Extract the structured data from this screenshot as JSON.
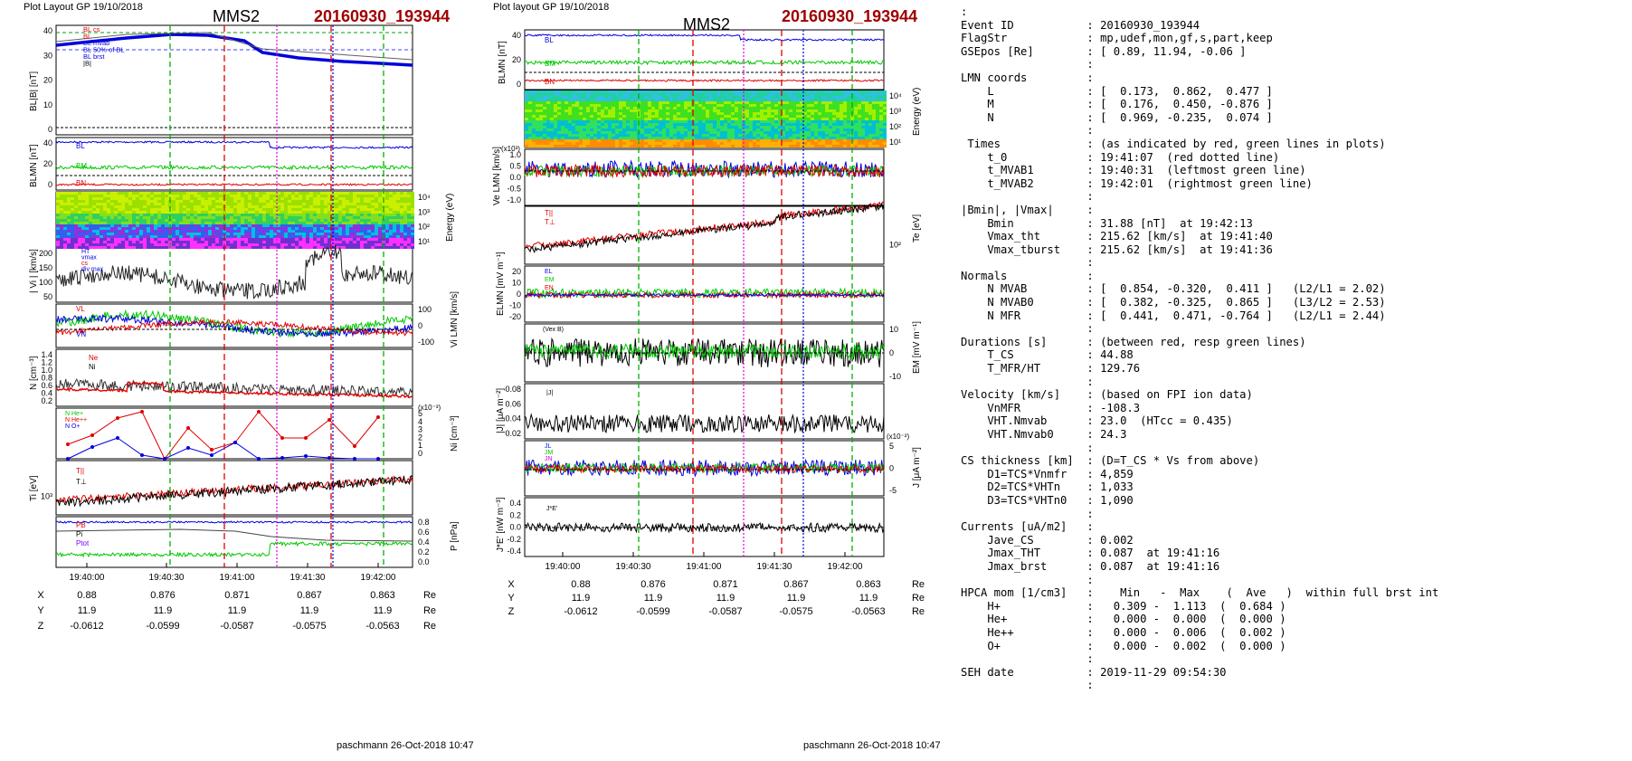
{
  "left": {
    "layout_label": "Plot Layout GP 19/10/2018",
    "sc_title": "MMS2",
    "event_title": "20160930_193944",
    "footer": "paschmann 26-Oct-2018 10:47",
    "time_ticks": [
      "19:40:00",
      "19:40:30",
      "19:41:00",
      "19:41:30",
      "19:42:00"
    ],
    "coords": {
      "rows": [
        {
          "label": "X",
          "values": [
            "0.88",
            "0.876",
            "0.871",
            "0.867",
            "0.863"
          ],
          "unit": "Re"
        },
        {
          "label": "Y",
          "values": [
            "11.9",
            "11.9",
            "11.9",
            "11.9",
            "11.9"
          ],
          "unit": "Re"
        },
        {
          "label": "Z",
          "values": [
            "-0.0612",
            "-0.0599",
            "-0.0587",
            "-0.0575",
            "-0.0563"
          ],
          "unit": "Re"
        }
      ]
    },
    "panel1": {
      "ylabel": "BL|B| [nT]",
      "ticks": [
        "40",
        "30",
        "20",
        "10",
        "0"
      ],
      "legend": [
        "BL cs",
        "BL",
        "BL mvab",
        "BL 50% of BL",
        "BL brst",
        "|B|"
      ]
    },
    "panel2": {
      "ylabel": "BLMN [nT]",
      "ticks": [
        "40",
        "20",
        "0"
      ],
      "labels": [
        "BL",
        "BM",
        "BN"
      ]
    },
    "panel3": {
      "ylabel": "Energy (eV)",
      "ticks": [
        "10⁴",
        "10³",
        "10²",
        "10¹"
      ]
    },
    "panel4": {
      "ylabel": "| Vi | [km/s]",
      "ticks": [
        "200",
        "150",
        "100",
        "50"
      ],
      "legend": [
        "HT",
        "vmax",
        "cs",
        "div max"
      ]
    },
    "panel5": {
      "ylabel": "Vi LMN [km/s]",
      "ticks": [
        "100",
        "0",
        "-100"
      ],
      "labels": [
        "VL",
        "VM",
        "VN"
      ]
    },
    "panel6": {
      "ylabel": "N [cm⁻³]",
      "ticks": [
        "1.4",
        "1.2",
        "1.0",
        "0.8",
        "0.6",
        "0.4",
        "0.2"
      ],
      "legend": [
        "Ne",
        "Ni"
      ]
    },
    "panel7": {
      "ylabel": "Ni [cm⁻³]",
      "ticks": [
        "5",
        "4",
        "3",
        "2",
        "1",
        "0"
      ],
      "exp": "(x10⁻³)",
      "legend": [
        "N  He+",
        "N  He++",
        "N  O+"
      ]
    },
    "panel8": {
      "ylabel": "Ti [eV]",
      "ticks": [
        "10³"
      ],
      "labels": [
        "T||",
        "T⊥"
      ]
    },
    "panel9": {
      "ylabel": "P [nPa]",
      "ticks": [
        "0.8",
        "0.6",
        "0.4",
        "0.2",
        "0.0"
      ],
      "labels": [
        "PB",
        "Pi",
        "Ptot"
      ]
    }
  },
  "middle": {
    "layout_label": "Plot layout GP 19/10/2018",
    "sc_title": "MMS2",
    "event_title": "20160930_193944",
    "footer": "paschmann 26-Oct-2018 10:47",
    "time_ticks": [
      "19:40:00",
      "19:40:30",
      "19:41:00",
      "19:41:30",
      "19:42:00"
    ],
    "coords": {
      "rows": [
        {
          "label": "X",
          "values": [
            "0.88",
            "0.876",
            "0.871",
            "0.867",
            "0.863"
          ],
          "unit": "Re"
        },
        {
          "label": "Y",
          "values": [
            "11.9",
            "11.9",
            "11.9",
            "11.9",
            "11.9"
          ],
          "unit": "Re"
        },
        {
          "label": "Z",
          "values": [
            "-0.0612",
            "-0.0599",
            "-0.0587",
            "-0.0575",
            "-0.0563"
          ],
          "unit": "Re"
        }
      ]
    },
    "panel1": {
      "ylabel": "BLMN [nT]",
      "ticks": [
        "40",
        "20",
        "0"
      ],
      "labels": [
        "BL",
        "BM",
        "BN"
      ]
    },
    "panel2": {
      "ylabel": "Energy (eV)",
      "ticks": [
        "10⁴",
        "10³",
        "10²",
        "10¹"
      ]
    },
    "panel3": {
      "ylabel": "Ve LMN [km/s]",
      "ticks": [
        "1.0",
        "0.5",
        "0.0",
        "-0.5",
        "-1.0"
      ],
      "exp": "(x10³)"
    },
    "panel4": {
      "ylabel": "Te [eV]",
      "ticks": [
        "10²"
      ],
      "labels": [
        "T||",
        "T⊥"
      ]
    },
    "panel5": {
      "ylabel": "ELMN [mV m⁻¹]",
      "ticks": [
        "20",
        "10",
        "0",
        "-10",
        "-20"
      ],
      "labels": [
        "EL",
        "EM",
        "EN"
      ]
    },
    "panel6": {
      "ylabel": "EM [mV m⁻¹]",
      "ticks": [
        "10",
        "0",
        "-10"
      ],
      "legend": [
        "(Vex B)"
      ]
    },
    "panel7": {
      "ylabel": "|J| [μA m⁻²]",
      "ticks": [
        "0.08",
        "0.06",
        "0.04",
        "0.02"
      ],
      "legend": [
        "|J|"
      ]
    },
    "panel8": {
      "ylabel": "J [μA m⁻²]",
      "ticks": [
        "5",
        "0",
        "-5"
      ],
      "exp": "(x10⁻²)",
      "legend": [
        "JL",
        "JM",
        "JN"
      ]
    },
    "panel9": {
      "ylabel": "J*E' [nW m⁻³]",
      "ticks": [
        "0.4",
        "0.2",
        "0.0",
        "-0.2",
        "-0.4"
      ],
      "legend": [
        "J*E'"
      ]
    }
  },
  "info_lines": [
    ":",
    "Event ID           : 20160930_193944",
    "FlagStr            : mp,udef,mon,gf,s,part,keep",
    "GSEpos [Re]        : [ 0.89, 11.94, -0.06 ]",
    "                   :",
    "LMN coords         :",
    "    L              : [  0.173,  0.862,  0.477 ]",
    "    M              : [  0.176,  0.450, -0.876 ]",
    "    N              : [  0.969, -0.235,  0.074 ]",
    "                   :",
    " Times             : (as indicated by red, green lines in plots)",
    "    t_0            : 19:41:07  (red dotted line)",
    "    t_MVAB1        : 19:40:31  (leftmost green line)",
    "    t_MVAB2        : 19:42:01  (rightmost green line)",
    "                   :",
    "|Bmin|, |Vmax|     :",
    "    Bmin           : 31.88 [nT]  at 19:42:13",
    "    Vmax_tht       : 215.62 [km/s]  at 19:41:40",
    "    Vmax_tburst    : 215.62 [km/s]  at 19:41:36",
    "                   :",
    "Normals            :",
    "    N MVAB         : [  0.854, -0.320,  0.411 ]   (L2/L1 = 2.02)",
    "    N MVAB0        : [  0.382, -0.325,  0.865 ]   (L3/L2 = 2.53)",
    "    N MFR          : [  0.441,  0.471, -0.764 ]   (L2/L1 = 2.44)",
    "                   :",
    "Durations [s]      : (between red, resp green lines)",
    "    T_CS           : 44.88",
    "    T_MFR/HT       : 129.76",
    "                   :",
    "Velocity [km/s]    : (based on FPI ion data)",
    "    VnMFR          : -108.3",
    "    VHT.Nmvab      : 23.0  (HTcc = 0.435)",
    "    VHT.Nmvab0     : 24.3",
    "                   :",
    "CS thickness [km]  : (D=T_CS * Vs from above)",
    "    D1=TCS*Vnmfr   : 4,859",
    "    D2=TCS*VHTn    : 1,033",
    "    D3=TCS*VHTn0   : 1,090",
    "                   :",
    "Currents [uA/m2]   :",
    "    Jave_CS        : 0.002",
    "    Jmax_THT       : 0.087  at 19:41:16",
    "    Jmax_brst      : 0.087  at 19:41:16",
    "                   :",
    "HPCA mom [1/cm3]   :    Min   -  Max    (  Ave   )  within full brst int",
    "    H+             :   0.309 -  1.113  (  0.684 )",
    "    He+            :   0.000 -  0.000  (  0.000 )",
    "    He++           :   0.000 -  0.006  (  0.002 )",
    "    O+             :   0.000 -  0.002  (  0.000 )",
    "                   :",
    "SEH date           : 2019-11-29 09:54:30",
    "                   :"
  ],
  "chart_data": [
    {
      "type": "line",
      "title": "MMS2 20160930_193944",
      "x": [
        "19:40:00",
        "19:40:30",
        "19:41:00",
        "19:41:30",
        "19:42:00"
      ],
      "series": [
        {
          "name": "|B|",
          "values": [
            40,
            42,
            41,
            34,
            30
          ]
        },
        {
          "name": "| Vi |",
          "values": [
            70,
            120,
            150,
            200,
            60
          ]
        },
        {
          "name": "Ni",
          "values": [
            0.75,
            0.55,
            0.5,
            0.55,
            0.5
          ]
        },
        {
          "name": "N He++",
          "values": [
            2.5,
            5.2,
            3.5,
            4.5,
            4.5
          ]
        },
        {
          "name": "N O+",
          "values": [
            1.0,
            2.2,
            1.5,
            0.3,
            0.2
          ]
        },
        {
          "name": "Pi",
          "values": [
            0.55,
            0.55,
            0.5,
            0.3,
            0.25
          ]
        },
        {
          "name": "PB",
          "values": [
            0.78,
            0.8,
            0.78,
            0.75,
            0.8
          ]
        }
      ]
    },
    {
      "type": "line",
      "title": "MMS2 20160930_193944",
      "x": [
        "19:40:00",
        "19:40:30",
        "19:41:00",
        "19:41:30",
        "19:42:00"
      ],
      "series": [
        {
          "name": "BL",
          "values": [
            40,
            40,
            38,
            32,
            30
          ]
        },
        {
          "name": "Te",
          "values": [
            80,
            90,
            100,
            130,
            170
          ]
        },
        {
          "name": "|J|",
          "values": [
            0.03,
            0.04,
            0.04,
            0.05,
            0.03
          ]
        },
        {
          "name": "J*E'",
          "values": [
            0.0,
            0.0,
            0.0,
            0.1,
            0.0
          ]
        }
      ]
    }
  ],
  "colors": {
    "red": "#e00000",
    "green": "#00c800",
    "blue": "#0000e0",
    "magenta": "#e000e0",
    "title_red": "#a00000"
  }
}
